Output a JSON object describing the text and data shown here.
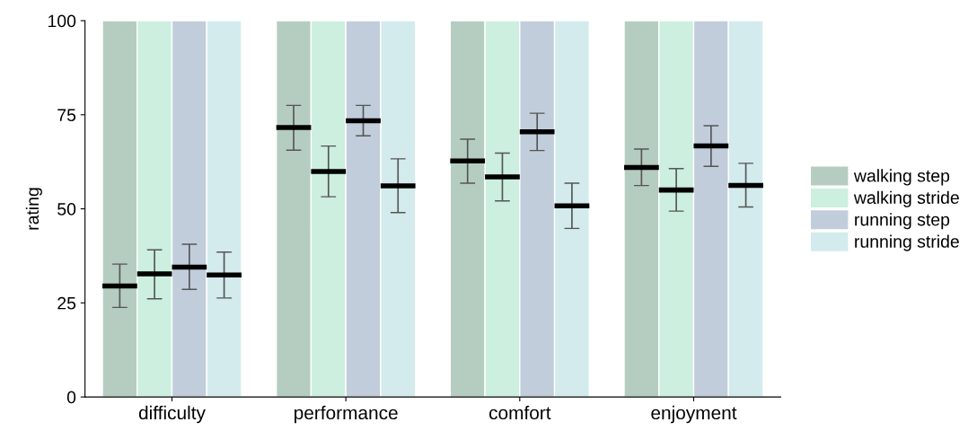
{
  "chart_data": {
    "type": "bar",
    "ylabel": "rating",
    "categories": [
      "difficulty",
      "performance",
      "comfort",
      "enjoyment"
    ],
    "ylim": [
      0,
      100
    ],
    "yticks": [
      0,
      25,
      50,
      75,
      100
    ],
    "grid": false,
    "legend": "right",
    "series": [
      {
        "name": "walking step",
        "color": "#b5cdc0",
        "values": [
          29.5,
          71.6,
          62.7,
          61.0
        ],
        "errors": [
          [
            23.8,
            35.3
          ],
          [
            65.6,
            77.5
          ],
          [
            56.8,
            68.5
          ],
          [
            56.2,
            65.9
          ]
        ]
      },
      {
        "name": "walking stride",
        "color": "#ccefdf",
        "values": [
          32.7,
          59.9,
          58.5,
          55.0
        ],
        "errors": [
          [
            26.1,
            39.1
          ],
          [
            53.2,
            66.7
          ],
          [
            52.1,
            64.8
          ],
          [
            49.4,
            60.7
          ]
        ]
      },
      {
        "name": "running step",
        "color": "#c1cddb",
        "values": [
          34.5,
          73.4,
          70.5,
          66.7
        ],
        "errors": [
          [
            28.6,
            40.6
          ],
          [
            69.4,
            77.5
          ],
          [
            65.5,
            75.4
          ],
          [
            61.3,
            72.1
          ]
        ]
      },
      {
        "name": "running stride",
        "color": "#d3ebec",
        "values": [
          32.4,
          56.1,
          50.8,
          56.2
        ],
        "errors": [
          [
            26.3,
            38.5
          ],
          [
            49.0,
            63.3
          ],
          [
            44.8,
            56.8
          ],
          [
            50.5,
            62.1
          ]
        ]
      }
    ]
  }
}
